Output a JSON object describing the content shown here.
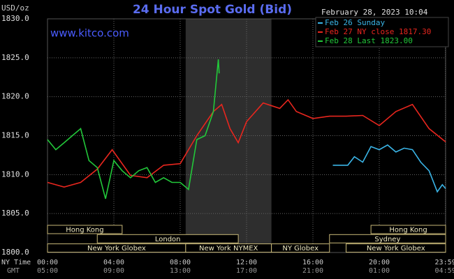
{
  "chart_data": {
    "type": "line",
    "title": "24 Hour Spot Gold (Bid)",
    "date": "February 28, 2023 10:04",
    "site": "www.kitco.com",
    "y_label": "USD/oz",
    "x_label": "NY Time",
    "x2_label": "GMT",
    "xlim": [
      0,
      24
    ],
    "xticks": [
      {
        "value": 0,
        "label": "00:00"
      },
      {
        "value": 4,
        "label": "04:00"
      },
      {
        "value": 8,
        "label": "08:00"
      },
      {
        "value": 12,
        "label": "12:00"
      },
      {
        "value": 16,
        "label": "16:00"
      },
      {
        "value": 20,
        "label": "20:00"
      },
      {
        "value": 23.983,
        "label": "23:59"
      }
    ],
    "x2ticks": [
      {
        "value": 0,
        "label": "05:00"
      },
      {
        "value": 4,
        "label": "09:00"
      },
      {
        "value": 8,
        "label": "13:00"
      },
      {
        "value": 12,
        "label": "17:00"
      },
      {
        "value": 16,
        "label": "21:00"
      },
      {
        "value": 20,
        "label": "01:00"
      },
      {
        "value": 23.983,
        "label": "04:59"
      }
    ],
    "ylim": [
      1800,
      1830
    ],
    "yticks": [
      {
        "value": 1800,
        "label": "1800.0"
      },
      {
        "value": 1805,
        "label": "1805.0"
      },
      {
        "value": 1810,
        "label": "1810.0"
      },
      {
        "value": 1815,
        "label": "1815.0"
      },
      {
        "value": 1820,
        "label": "1820.0"
      },
      {
        "value": 1825,
        "label": "1825.0"
      },
      {
        "value": 1830,
        "label": "1830.0"
      }
    ],
    "grid": true,
    "legend": "top-right",
    "shaded_range": [
      8.33,
      13.5
    ],
    "session_rows": [
      [
        {
          "label": "Hong Kong",
          "start": 0,
          "end": 4.5
        },
        {
          "label": "Hong Kong",
          "start": 19.5,
          "end": 24
        }
      ],
      [
        {
          "label": "London",
          "start": 3,
          "end": 11.5
        },
        {
          "label": "Sydney",
          "start": 17,
          "end": 24
        }
      ],
      [
        {
          "label": "New York Globex",
          "start": 0,
          "end": 8.33
        },
        {
          "label": "New York NYMEX",
          "start": 8.33,
          "end": 13.5
        },
        {
          "label": "NY Globex",
          "start": 13.5,
          "end": 17
        },
        {
          "label": "New York Globex",
          "start": 18,
          "end": 24
        }
      ]
    ],
    "series": [
      {
        "name": "Feb 26 Sunday",
        "color": "#3ab4e6",
        "x": [
          17.2,
          18.1,
          18.5,
          19,
          19.5,
          20,
          20.5,
          21,
          21.5,
          22,
          22.5,
          23,
          23.5,
          23.8,
          24
        ],
        "values": [
          1811.2,
          1811.2,
          1812.3,
          1811.6,
          1813.6,
          1813.2,
          1813.8,
          1812.9,
          1813.4,
          1813.2,
          1811.6,
          1810.5,
          1807.8,
          1808.7,
          1808.2
        ]
      },
      {
        "name": "Feb 27 NY close 1817.30",
        "color": "#e8261e",
        "x": [
          0,
          1,
          2,
          3,
          3.9,
          5,
          6,
          7,
          8,
          9,
          10,
          10.5,
          11,
          11.5,
          12,
          13,
          14,
          14.5,
          15,
          16,
          17,
          18,
          19,
          20,
          21,
          22,
          23,
          24
        ],
        "values": [
          1809.0,
          1808.4,
          1809.0,
          1810.7,
          1813.2,
          1809.9,
          1809.6,
          1811.2,
          1811.4,
          1815.0,
          1818.1,
          1819.0,
          1815.9,
          1814.1,
          1816.8,
          1819.2,
          1818.5,
          1819.6,
          1818.1,
          1817.2,
          1817.5,
          1817.5,
          1817.6,
          1816.3,
          1818.1,
          1819.0,
          1815.9,
          1814.2
        ]
      },
      {
        "name": "Feb 28 Last 1823.00",
        "color": "#22c83a",
        "x": [
          0,
          0.5,
          1,
          1.5,
          2,
          2.5,
          3,
          3.5,
          4,
          4.5,
          5,
          5.5,
          6,
          6.5,
          7,
          7.5,
          8,
          8.5,
          9,
          9.5,
          10,
          10.3,
          10.35
        ],
        "values": [
          1814.5,
          1813.2,
          1814.1,
          1815.0,
          1815.9,
          1811.8,
          1810.9,
          1806.9,
          1811.8,
          1810.5,
          1809.6,
          1810.5,
          1810.9,
          1809.0,
          1809.6,
          1809.0,
          1809.0,
          1808.1,
          1814.5,
          1815.0,
          1818.1,
          1824.8,
          1823.0
        ]
      }
    ]
  }
}
